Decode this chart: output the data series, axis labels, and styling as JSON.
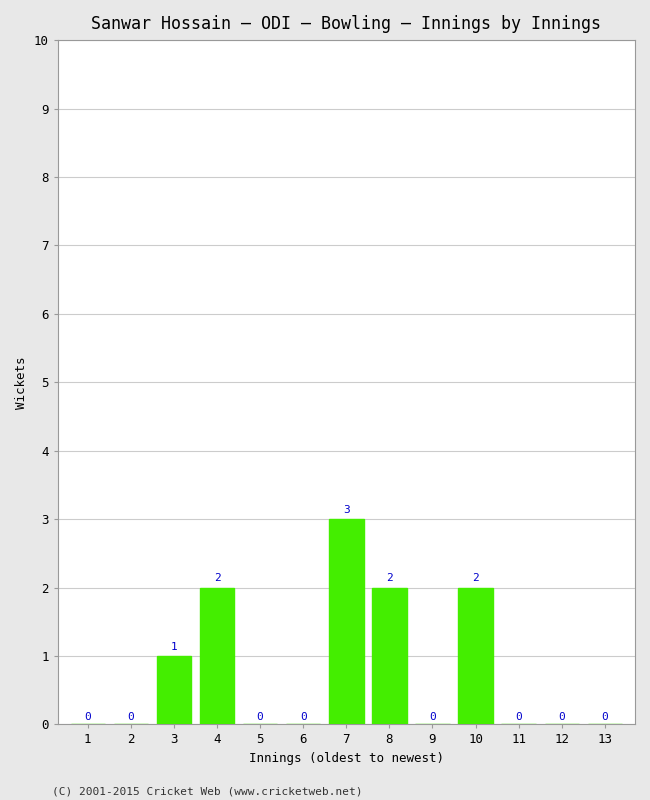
{
  "title": "Sanwar Hossain – ODI – Bowling – Innings by Innings",
  "xlabel": "Innings (oldest to newest)",
  "ylabel": "Wickets",
  "innings": [
    1,
    2,
    3,
    4,
    5,
    6,
    7,
    8,
    9,
    10,
    11,
    12,
    13
  ],
  "wickets": [
    0,
    0,
    1,
    2,
    0,
    0,
    3,
    2,
    0,
    2,
    0,
    0,
    0
  ],
  "bar_color": "#44ee00",
  "label_color": "#0000cc",
  "background_color": "#ffffff",
  "fig_background_color": "#e8e8e8",
  "grid_color": "#cccccc",
  "ylim": [
    0,
    10
  ],
  "yticks": [
    0,
    1,
    2,
    3,
    4,
    5,
    6,
    7,
    8,
    9,
    10
  ],
  "xticks": [
    1,
    2,
    3,
    4,
    5,
    6,
    7,
    8,
    9,
    10,
    11,
    12,
    13
  ],
  "footer": "(C) 2001-2015 Cricket Web (www.cricketweb.net)",
  "title_fontsize": 12,
  "axis_label_fontsize": 9,
  "tick_fontsize": 9,
  "bar_label_fontsize": 8,
  "footer_fontsize": 8
}
